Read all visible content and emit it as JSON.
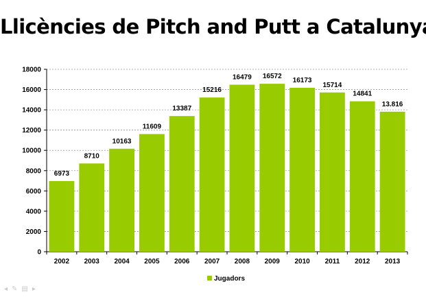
{
  "slide": {
    "title": "Llicències de Pitch and Putt a Catalunya"
  },
  "colors": {
    "bar": "#99cc00",
    "grid": "#999999"
  },
  "chart_data": {
    "type": "bar",
    "title": "",
    "xlabel": "",
    "ylabel": "",
    "categories": [
      "2002",
      "2003",
      "2004",
      "2005",
      "2006",
      "2007",
      "2008",
      "2009",
      "2010",
      "2011",
      "2012",
      "2013"
    ],
    "series": [
      {
        "name": "Jugadors",
        "values": [
          6973,
          8710,
          10163,
          11609,
          13387,
          15216,
          16479,
          16572,
          16173,
          15714,
          14841,
          13816
        ],
        "labels": [
          "6973",
          "8710",
          "10163",
          "11609",
          "13387",
          "15216",
          "16479",
          "16572",
          "16173",
          "15714",
          "14841",
          "13.816"
        ]
      }
    ],
    "ylim": [
      0,
      18000
    ],
    "yticks": [
      0,
      2000,
      4000,
      6000,
      8000,
      10000,
      12000,
      14000,
      16000,
      18000
    ],
    "grid": true,
    "legend_position": "bottom"
  },
  "nav": {
    "icons": [
      "arrow-left-icon",
      "pen-icon",
      "menu-icon",
      "arrow-right-icon"
    ]
  }
}
